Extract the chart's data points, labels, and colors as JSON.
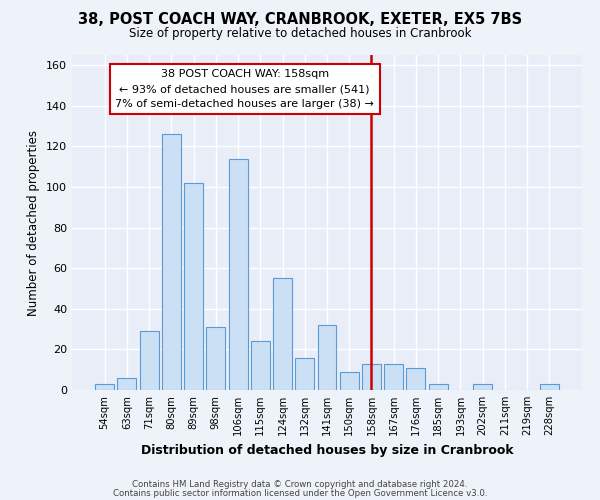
{
  "title": "38, POST COACH WAY, CRANBROOK, EXETER, EX5 7BS",
  "subtitle": "Size of property relative to detached houses in Cranbrook",
  "xlabel": "Distribution of detached houses by size in Cranbrook",
  "ylabel": "Number of detached properties",
  "bar_labels": [
    "54sqm",
    "63sqm",
    "71sqm",
    "80sqm",
    "89sqm",
    "98sqm",
    "106sqm",
    "115sqm",
    "124sqm",
    "132sqm",
    "141sqm",
    "150sqm",
    "158sqm",
    "167sqm",
    "176sqm",
    "185sqm",
    "193sqm",
    "202sqm",
    "211sqm",
    "219sqm",
    "228sqm"
  ],
  "bar_values": [
    3,
    6,
    29,
    126,
    102,
    31,
    114,
    24,
    55,
    16,
    32,
    9,
    13,
    13,
    11,
    3,
    0,
    3,
    0,
    0,
    3
  ],
  "bar_color": "#cce0f5",
  "bar_edge_color": "#5b9bd5",
  "vline_x_index": 12,
  "vline_color": "#cc0000",
  "annotation_title": "38 POST COACH WAY: 158sqm",
  "annotation_line1": "← 93% of detached houses are smaller (541)",
  "annotation_line2": "7% of semi-detached houses are larger (38) →",
  "annotation_box_facecolor": "#ffffff",
  "annotation_box_edgecolor": "#cc0000",
  "footer1": "Contains HM Land Registry data © Crown copyright and database right 2024.",
  "footer2": "Contains public sector information licensed under the Open Government Licence v3.0.",
  "ylim": [
    0,
    165
  ],
  "background_color": "#eef2f9",
  "plot_bg_color": "#e8edf7",
  "grid_color": "#ffffff"
}
